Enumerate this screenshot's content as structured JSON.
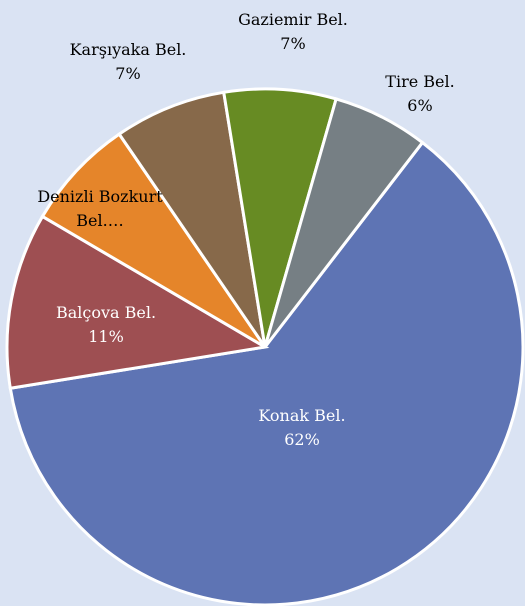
{
  "chart_data": {
    "type": "pie",
    "categories": [
      "Konak Bel.",
      "Balçova Bel.",
      "Denizli Bozkurt Bel.…",
      "Karşıyaka Bel.",
      "Gaziemir Bel.",
      "Tire Bel."
    ],
    "values": [
      62,
      11,
      7,
      7,
      7,
      6
    ],
    "value_labels": [
      "62%",
      "11%",
      null,
      "7%",
      "7%",
      "6%"
    ],
    "colors": [
      "#5e74b4",
      "#9e4f52",
      "#e5852a",
      "#87694a",
      "#678b23",
      "#767f84"
    ]
  }
}
